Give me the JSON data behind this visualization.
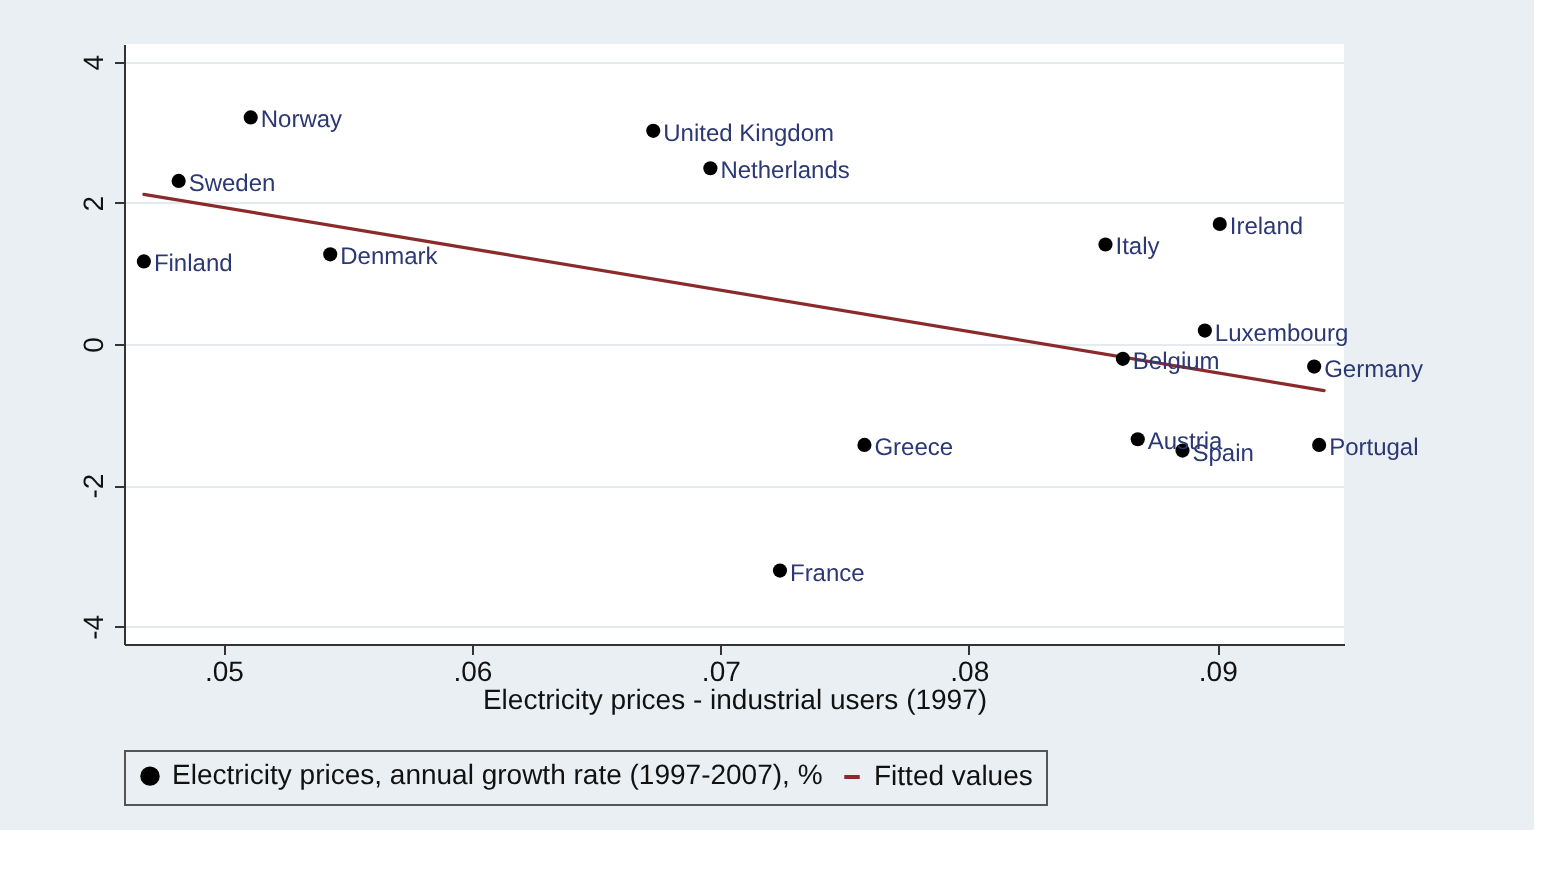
{
  "chart_data": {
    "type": "scatter",
    "xlabel": "Electricity prices - industrial users (1997)",
    "xlim": [
      0.046,
      0.0951
    ],
    "ylim": [
      -4.25,
      4.25
    ],
    "xticks": [
      {
        "value": 0.05,
        "label": ".05"
      },
      {
        "value": 0.06,
        "label": ".06"
      },
      {
        "value": 0.07,
        "label": ".07"
      },
      {
        "value": 0.08,
        "label": ".08"
      },
      {
        "value": 0.09,
        "label": ".09"
      }
    ],
    "yticks": [
      -4,
      -2,
      0,
      2,
      4
    ],
    "grid": "y",
    "legend": "bottom",
    "series": [
      {
        "name": "Electricity prices, annual growth rate (1997-2007), %",
        "marker": "circle",
        "color": "#000000",
        "x": [
          0.0511,
          0.0482,
          0.0468,
          0.0543,
          0.0673,
          0.0696,
          0.0855,
          0.0901,
          0.0895,
          0.0862,
          0.0939,
          0.0758,
          0.0868,
          0.0886,
          0.0941,
          0.0724
        ],
        "values": [
          3.21,
          2.31,
          1.17,
          1.27,
          3.02,
          2.49,
          1.41,
          1.7,
          0.19,
          -0.21,
          -0.32,
          -1.43,
          -1.35,
          -1.51,
          -1.43,
          -3.21
        ],
        "value_labels": [
          "Norway",
          "Sweden",
          "Finland",
          "Denmark",
          "United Kingdom",
          "Netherlands",
          "Italy",
          "Ireland",
          "Luxembourg",
          "Belgium",
          "Germany",
          "Greece",
          "Austria",
          "Spain",
          "Portugal",
          "France"
        ]
      },
      {
        "name": "Fitted values",
        "type": "line",
        "color": "#8b2a2a",
        "line_style": "solid",
        "x": [
          0.0468,
          0.0943
        ],
        "values": [
          2.12,
          -0.66
        ]
      }
    ]
  }
}
